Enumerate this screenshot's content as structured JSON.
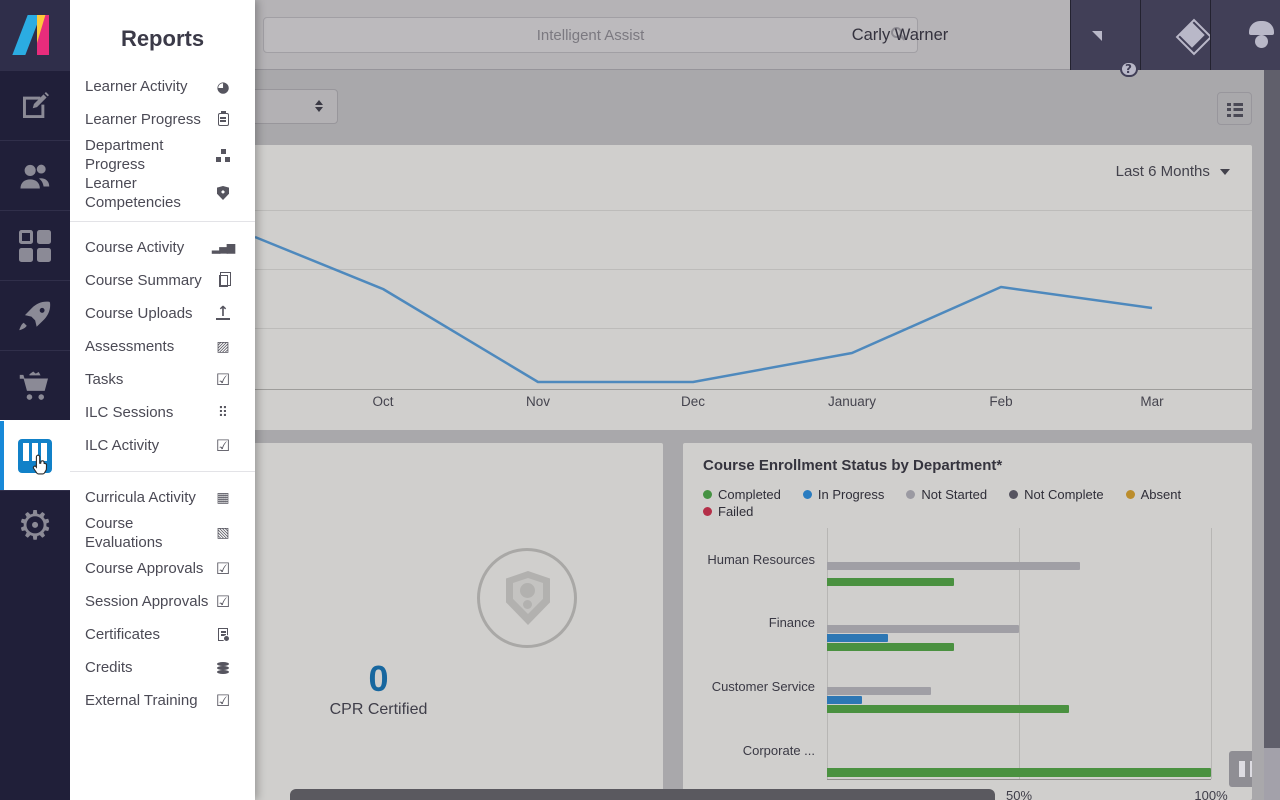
{
  "colors": {
    "accent_blue": "#1789d8",
    "line_blue": "#4e89bd",
    "bar_gray": "#a09fa5",
    "bar_blue": "#2d77b4",
    "bar_green": "#4a9140",
    "sidebar_bg": "#201f39",
    "metric_value_blue": "#17679f"
  },
  "header": {
    "search_placeholder": "Intelligent Assist",
    "user_name": "Carly Warner",
    "actions": [
      {
        "icon": "help-chat"
      },
      {
        "icon": "mail"
      },
      {
        "icon": "profile"
      }
    ]
  },
  "sidebar": {
    "items": [
      {
        "icon": "compose",
        "active": false
      },
      {
        "icon": "users",
        "active": false
      },
      {
        "icon": "dashboard",
        "active": false
      },
      {
        "icon": "rocket",
        "active": false
      },
      {
        "icon": "cart",
        "active": false
      },
      {
        "icon": "reports",
        "active": true
      },
      {
        "icon": "settings",
        "active": false
      }
    ]
  },
  "flyout": {
    "title": "Reports",
    "items": [
      {
        "label": "Learner Activity",
        "icon": "pie-chart"
      },
      {
        "label": "Learner Progress",
        "icon": "clipboard-report"
      },
      {
        "label": "Department Progress",
        "icon": "org-chart"
      },
      {
        "label": "Learner Competencies",
        "icon": "shield-badge"
      },
      {
        "type": "divider"
      },
      {
        "label": "Course Activity",
        "icon": "bar-chart"
      },
      {
        "label": "Course Summary",
        "icon": "copy-doc"
      },
      {
        "label": "Course Uploads",
        "icon": "upload"
      },
      {
        "label": "Assessments",
        "icon": "doc-chart"
      },
      {
        "label": "Tasks",
        "icon": "clipboard-check"
      },
      {
        "label": "ILC Sessions",
        "icon": "people-grid"
      },
      {
        "label": "ILC Activity",
        "icon": "session-check"
      },
      {
        "type": "divider"
      },
      {
        "label": "Curricula Activity",
        "icon": "framed-chart"
      },
      {
        "label": "Course Evaluations",
        "icon": "framed-line-chart"
      },
      {
        "label": "Course Approvals",
        "icon": "checkbox"
      },
      {
        "label": "Session Approvals",
        "icon": "checkbox"
      },
      {
        "label": "Certificates",
        "icon": "certificate"
      },
      {
        "label": "Credits",
        "icon": "coins"
      },
      {
        "label": "External Training",
        "icon": "clipboard-check"
      }
    ]
  },
  "metric_card": {
    "value": "0",
    "label": "CPR Certified",
    "icon": "shield-badge-circle"
  },
  "chart_data": [
    {
      "type": "line",
      "title": "",
      "period_selector": "Last 6 Months",
      "x": [
        "Oct",
        "Nov",
        "Dec",
        "January",
        "Feb",
        "Mar"
      ],
      "values": [
        42,
        3,
        3,
        15,
        43,
        34
      ],
      "entry_value_at_left_edge": 64,
      "ylim": [
        0,
        100
      ],
      "grid": "horizontal",
      "legend_position": "none",
      "line_color": "#4e89bd"
    },
    {
      "type": "bar",
      "orientation": "horizontal",
      "title": "Course Enrollment Status by Department*",
      "xlim": [
        0,
        100
      ],
      "xtick_labels": [
        "50%",
        "100%"
      ],
      "xtick_values": [
        50,
        100
      ],
      "grid": "vertical",
      "legend_position": "top",
      "legend": [
        {
          "label": "Completed",
          "color": "#459242"
        },
        {
          "label": "In Progress",
          "color": "#2a7cc0"
        },
        {
          "label": "Not Started",
          "color": "#9b9aa2"
        },
        {
          "label": "Not Complete",
          "color": "#565460"
        },
        {
          "label": "Absent",
          "color": "#bb8d2c"
        },
        {
          "label": "Failed",
          "color": "#b42f48"
        }
      ],
      "categories": [
        "Human Resources",
        "Finance",
        "Customer Service",
        "Corporate ..."
      ],
      "series": [
        {
          "name": "Not Started",
          "color": "#a09fa5",
          "values": [
            66,
            50,
            27,
            0
          ]
        },
        {
          "name": "In Progress",
          "color": "#2d77b4",
          "values": [
            0,
            16,
            9,
            0
          ]
        },
        {
          "name": "Completed",
          "color": "#4a9140",
          "values": [
            33,
            33,
            63,
            100
          ]
        }
      ]
    }
  ]
}
